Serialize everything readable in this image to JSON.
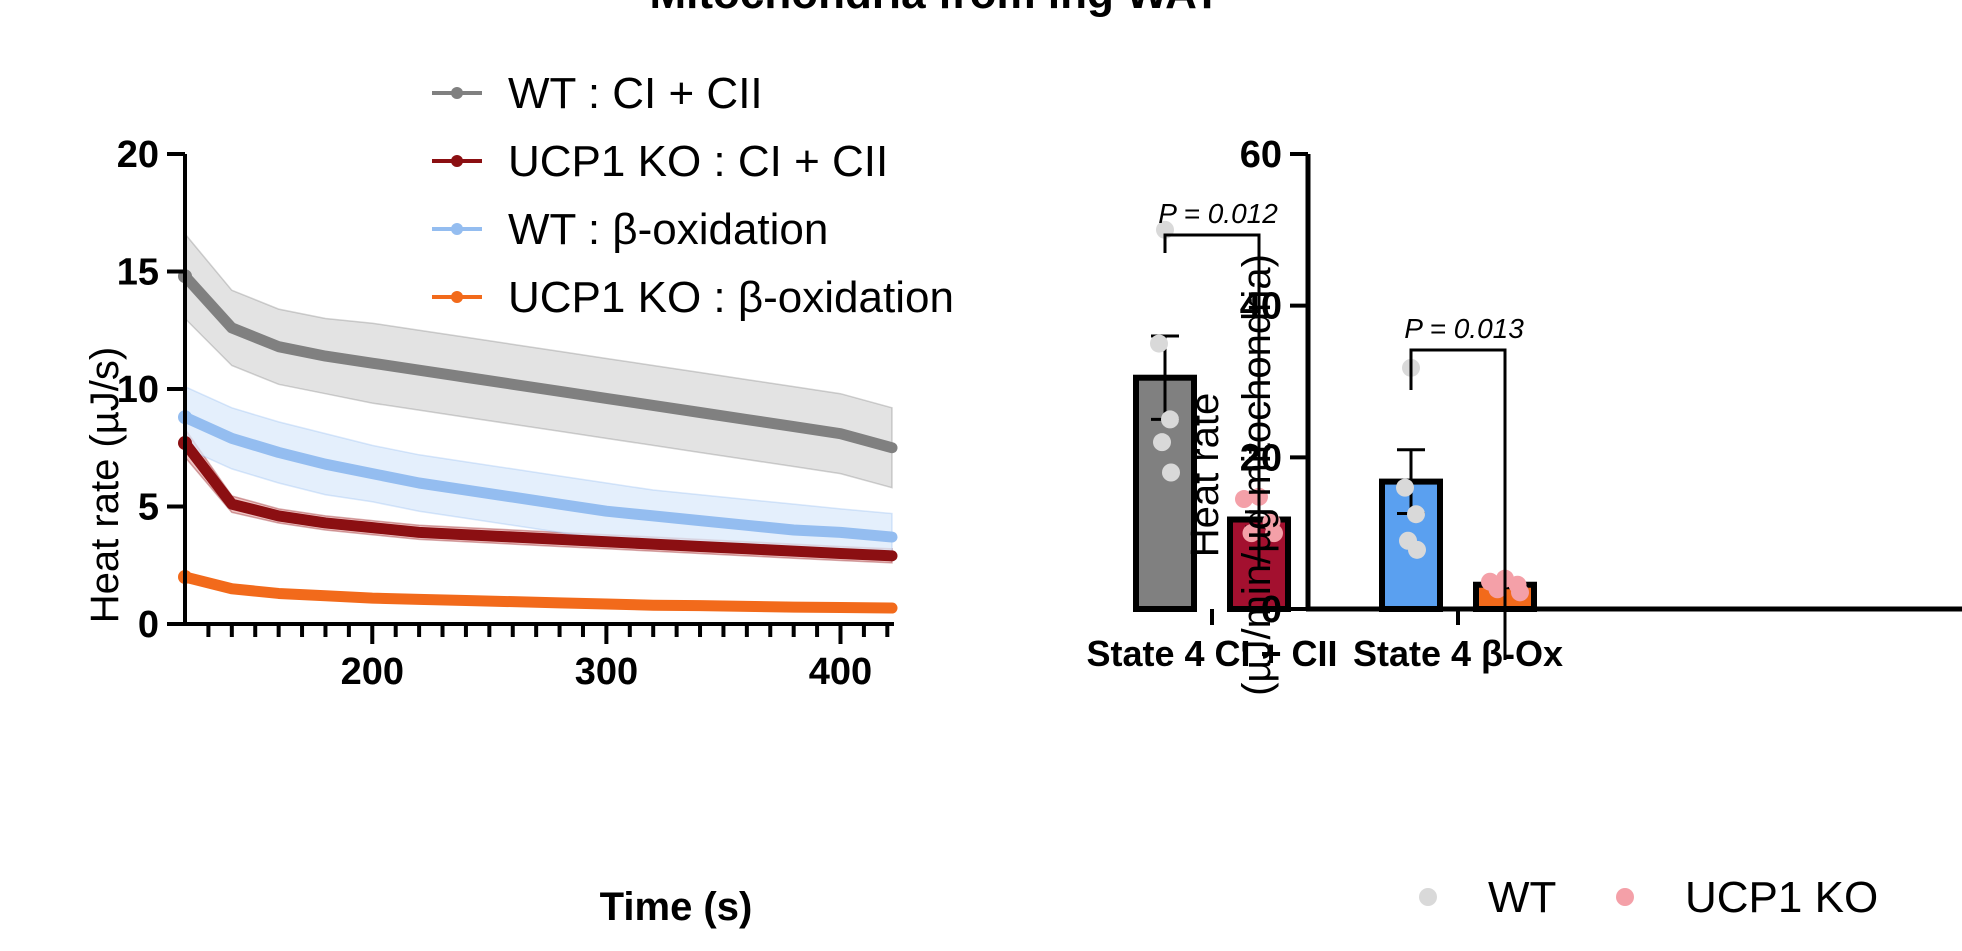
{
  "title": "Mitochondria from ing WAT",
  "chart_data": [
    {
      "type": "line",
      "xlabel": "Time (s)",
      "ylabel": "Heat rate (µJ/s)",
      "xlim": [
        120,
        422
      ],
      "ylim": [
        0,
        20
      ],
      "xticks": [
        200,
        300,
        400
      ],
      "yticks": [
        0,
        5,
        10,
        15,
        20
      ],
      "legend_position": "top",
      "x": [
        120,
        140,
        160,
        180,
        200,
        220,
        240,
        260,
        280,
        300,
        320,
        340,
        360,
        380,
        400,
        422
      ],
      "series": [
        {
          "name": "WT : CI + CII",
          "color": "#808080",
          "band_color": "#d9d9d9",
          "values": [
            14.8,
            12.6,
            11.8,
            11.4,
            11.1,
            10.8,
            10.5,
            10.2,
            9.9,
            9.6,
            9.3,
            9.0,
            8.7,
            8.4,
            8.1,
            7.5
          ],
          "error": [
            1.8,
            1.6,
            1.6,
            1.6,
            1.7,
            1.7,
            1.7,
            1.7,
            1.7,
            1.7,
            1.7,
            1.7,
            1.7,
            1.7,
            1.7,
            1.7
          ]
        },
        {
          "name": "UCP1 KO : CI + CII",
          "color": "#8b0f12",
          "band_color": "#e8b0b0",
          "values": [
            7.7,
            5.1,
            4.6,
            4.3,
            4.1,
            3.9,
            3.8,
            3.7,
            3.6,
            3.5,
            3.4,
            3.3,
            3.2,
            3.1,
            3.0,
            2.9
          ],
          "error": [
            0.6,
            0.35,
            0.3,
            0.3,
            0.3,
            0.3,
            0.3,
            0.3,
            0.3,
            0.3,
            0.3,
            0.3,
            0.3,
            0.3,
            0.3,
            0.3
          ]
        },
        {
          "name": "WT : β-oxidation",
          "color": "#94bdf0",
          "band_color": "#dbe9fb",
          "values": [
            8.8,
            7.9,
            7.3,
            6.8,
            6.4,
            6.0,
            5.7,
            5.4,
            5.1,
            4.8,
            4.6,
            4.4,
            4.2,
            4.0,
            3.9,
            3.7
          ],
          "error": [
            1.3,
            1.3,
            1.3,
            1.3,
            1.2,
            1.2,
            1.2,
            1.2,
            1.2,
            1.2,
            1.1,
            1.1,
            1.1,
            1.1,
            1.0,
            1.0
          ]
        },
        {
          "name": "UCP1 KO : β-oxidation",
          "color": "#f26a1b",
          "band_color": "#fbc9a8",
          "values": [
            2.0,
            1.5,
            1.3,
            1.2,
            1.1,
            1.05,
            1.0,
            0.95,
            0.9,
            0.85,
            0.8,
            0.78,
            0.75,
            0.72,
            0.7,
            0.68
          ],
          "error": [
            0.15,
            0.1,
            0.1,
            0.1,
            0.1,
            0.1,
            0.1,
            0.1,
            0.1,
            0.1,
            0.1,
            0.1,
            0.1,
            0.1,
            0.1,
            0.1
          ]
        }
      ]
    },
    {
      "type": "bar",
      "ylabel_line1": "Heat rate",
      "ylabel_line2": "(µJ/min/µg mitochondria)",
      "ylim": [
        0,
        60
      ],
      "yticks": [
        0,
        20,
        40,
        60
      ],
      "categories": [
        "State 4 CI + CII",
        "State 4 β-Ox"
      ],
      "legend_position": "bottom",
      "series": [
        {
          "name": "WT",
          "point_color": "#d9d9d9",
          "values": [
            30.5,
            16.8
          ],
          "sem": [
            5.5,
            4.2
          ],
          "bar_colors": [
            "#808080",
            "#5aa0f0"
          ],
          "points": [
            [
              50,
              35,
              25,
              22,
              18
            ],
            [
              31.8,
              16,
              12.5,
              9,
              7.8
            ]
          ]
        },
        {
          "name": "UCP1 KO",
          "point_color": "#f4a0a8",
          "values": [
            11.8,
            3.2
          ],
          "sem": [
            1.0,
            0.4
          ],
          "bar_colors": [
            "#a3102f",
            "#f26a1b"
          ],
          "points": [
            [
              14.8,
              14.5,
              11.5,
              10,
              10
            ],
            [
              4,
              3.6,
              3.2,
              2.6,
              2.2
            ]
          ]
        }
      ],
      "annotations": [
        {
          "label": "P = 0.012",
          "category": "State 4 CI + CII"
        },
        {
          "label": "P = 0.013",
          "category": "State 4 β-Ox"
        }
      ]
    }
  ]
}
